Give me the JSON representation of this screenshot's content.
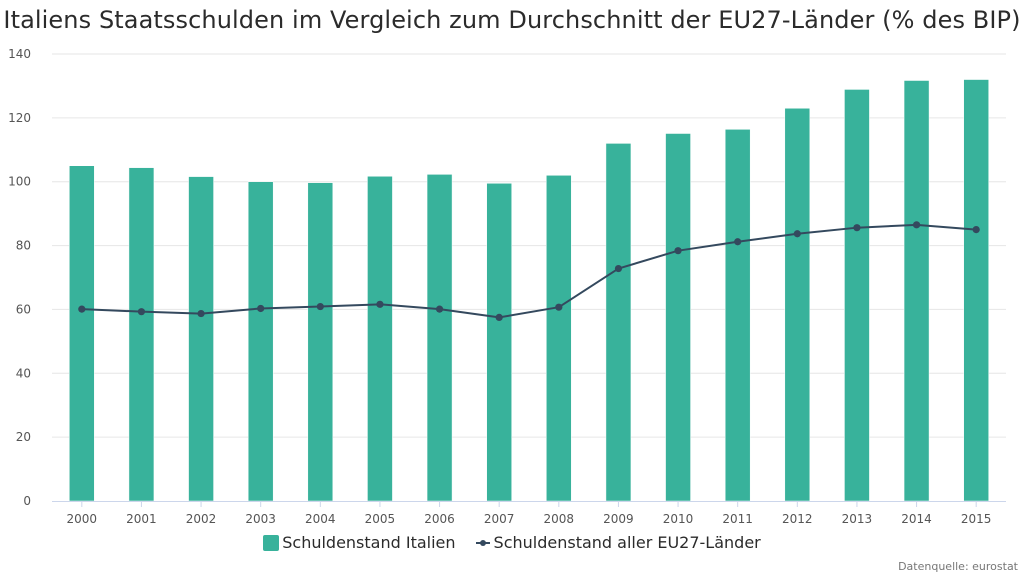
{
  "title": "Italiens Staatsschulden im Vergleich zum Durchschnitt der EU27-Länder (% des BIP)",
  "source": "Datenquelle: eurostat",
  "colors": {
    "bar": "#38b29b",
    "line": "#34495e",
    "grid": "#e6e6e6",
    "axis": "#ccd6eb"
  },
  "legend": {
    "items": [
      {
        "label": "Schuldenstand Italien",
        "type": "bar"
      },
      {
        "label": "Schuldenstand aller EU27-Länder",
        "type": "line"
      }
    ]
  },
  "chart_data": {
    "type": "bar",
    "title": "Italiens Staatsschulden im Vergleich zum Durchschnitt der EU27-Länder (% des BIP)",
    "xlabel": "",
    "ylabel": "",
    "ylim": [
      0,
      140
    ],
    "yticks": [
      0,
      20,
      40,
      60,
      80,
      100,
      120,
      140
    ],
    "grid": true,
    "legend_position": "bottom-center",
    "categories": [
      "2000",
      "2001",
      "2002",
      "2003",
      "2004",
      "2005",
      "2006",
      "2007",
      "2008",
      "2009",
      "2010",
      "2011",
      "2012",
      "2013",
      "2014",
      "2015"
    ],
    "series": [
      {
        "name": "Schuldenstand Italien",
        "type": "bar",
        "values": [
          105.0,
          104.4,
          101.6,
          100.0,
          99.7,
          101.7,
          102.3,
          99.5,
          102.0,
          112.0,
          115.1,
          116.4,
          123.0,
          128.9,
          131.7,
          132.0
        ]
      },
      {
        "name": "Schuldenstand aller EU27-Länder",
        "type": "line",
        "values": [
          60.1,
          59.3,
          58.7,
          60.3,
          60.9,
          61.6,
          60.1,
          57.5,
          60.7,
          72.8,
          78.4,
          81.2,
          83.7,
          85.6,
          86.5,
          85.0
        ]
      }
    ]
  }
}
